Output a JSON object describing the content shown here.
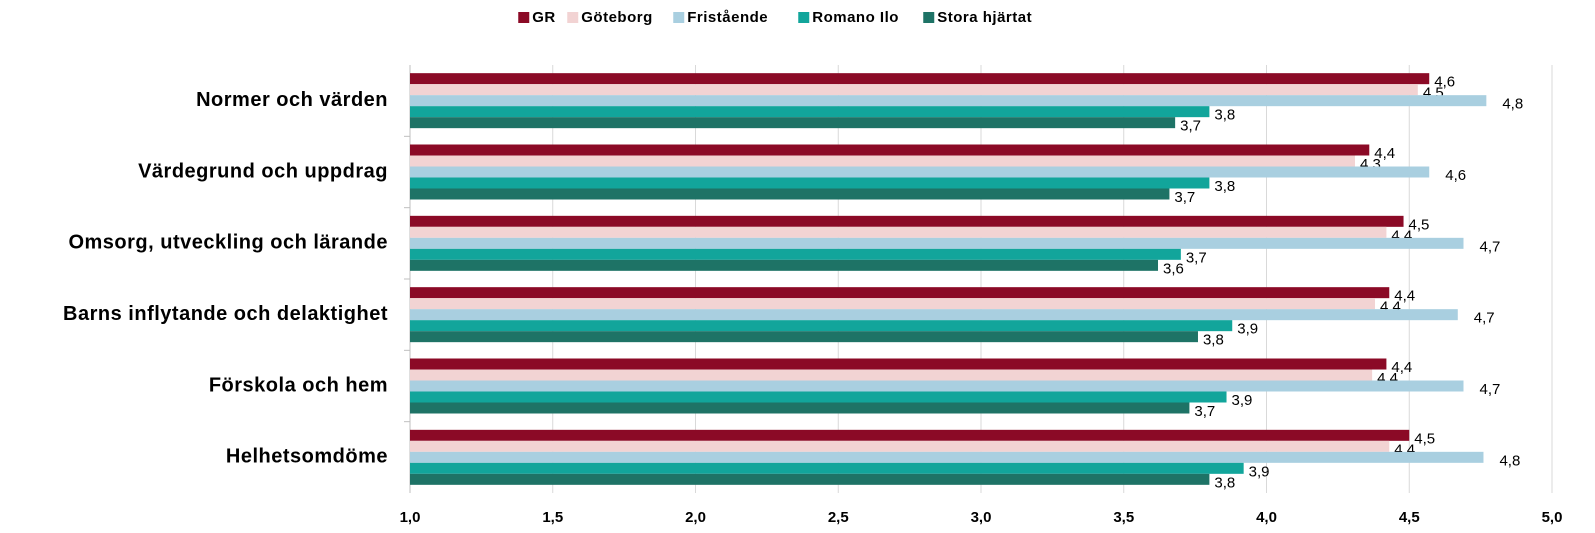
{
  "chart_data": {
    "type": "barh",
    "categories": [
      "Normer och värden",
      "Värdegrund och uppdrag",
      "Omsorg, utveckling och lärande",
      "Barns inflytande och delaktighet",
      "Förskola och hem",
      "Helhetsomdöme"
    ],
    "series": [
      {
        "name": "GR",
        "color": "#8b0a26",
        "values": [
          4.57,
          4.36,
          4.48,
          4.43,
          4.42,
          4.5
        ],
        "value_labels": [
          "4,6",
          "4,4",
          "4,5",
          "4,4",
          "4,4",
          "4,5"
        ]
      },
      {
        "name": "Göteborg",
        "color": "#f2d3d3",
        "values": [
          4.53,
          4.31,
          4.42,
          4.38,
          4.37,
          4.43
        ],
        "value_labels": [
          "4,5",
          "4,3",
          "4,4",
          "4,4",
          "4,4",
          "4,4"
        ]
      },
      {
        "name": "Fristående",
        "color": "#a9cfe0",
        "values": [
          4.77,
          4.57,
          4.69,
          4.67,
          4.69,
          4.76
        ],
        "value_labels": [
          "4,8",
          "4,6",
          "4,7",
          "4,7",
          "4,7",
          "4,8"
        ]
      },
      {
        "name": "Romano Ilo",
        "color": "#12a59b",
        "values": [
          3.8,
          3.8,
          3.7,
          3.88,
          3.86,
          3.92
        ],
        "value_labels": [
          "3,8",
          "3,8",
          "3,7",
          "3,9",
          "3,9",
          "3,9"
        ]
      },
      {
        "name": "Stora hjärtat",
        "color": "#1e7366",
        "values": [
          3.68,
          3.66,
          3.62,
          3.76,
          3.73,
          3.8
        ],
        "value_labels": [
          "3,7",
          "3,7",
          "3,6",
          "3,8",
          "3,7",
          "3,8"
        ]
      }
    ],
    "xlim": [
      1,
      5
    ],
    "xticks": [
      {
        "value": 1,
        "label": "1,0"
      },
      {
        "value": 1.5,
        "label": "1,5"
      },
      {
        "value": 2,
        "label": "2,0"
      },
      {
        "value": 2.5,
        "label": "2,5"
      },
      {
        "value": 3,
        "label": "3,0"
      },
      {
        "value": 3.5,
        "label": "3,5"
      },
      {
        "value": 4,
        "label": "4,0"
      },
      {
        "value": 4.5,
        "label": "4,5"
      },
      {
        "value": 5,
        "label": "5,0"
      }
    ],
    "grid": true,
    "legend": "top"
  }
}
